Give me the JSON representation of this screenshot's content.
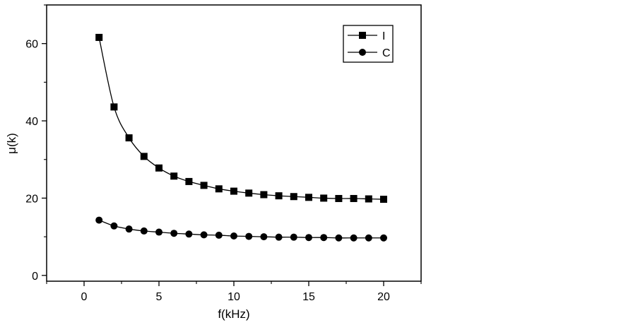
{
  "chart_data": {
    "type": "line",
    "title": "",
    "xlabel": "f(kHz)",
    "ylabel": "μ(k)",
    "xlim": [
      -2.5,
      22.5
    ],
    "ylim": [
      -1.5,
      70
    ],
    "xticks": [
      0,
      5,
      10,
      15,
      20
    ],
    "yticks": [
      0,
      20,
      40,
      60
    ],
    "grid": false,
    "legend_position": "top-right",
    "x": [
      1,
      2,
      3,
      4,
      5,
      6,
      7,
      8,
      9,
      10,
      11,
      12,
      13,
      14,
      15,
      16,
      17,
      18,
      19,
      20
    ],
    "series": [
      {
        "name": "I",
        "marker": "square",
        "color": "#000000",
        "values": [
          61.6,
          43.6,
          35.6,
          30.8,
          27.8,
          25.7,
          24.3,
          23.3,
          22.4,
          21.8,
          21.3,
          20.9,
          20.6,
          20.4,
          20.2,
          20.0,
          19.9,
          19.9,
          19.8,
          19.7
        ]
      },
      {
        "name": "C",
        "marker": "circle",
        "color": "#000000",
        "values": [
          14.3,
          12.8,
          12.0,
          11.5,
          11.2,
          10.9,
          10.7,
          10.5,
          10.4,
          10.2,
          10.1,
          10.0,
          9.9,
          9.9,
          9.8,
          9.8,
          9.7,
          9.7,
          9.7,
          9.7
        ]
      }
    ]
  }
}
